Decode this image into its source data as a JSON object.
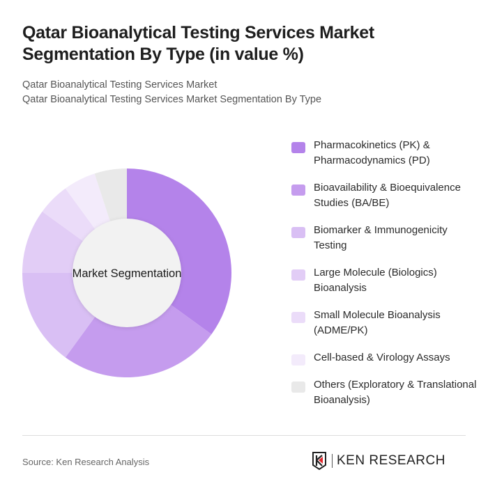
{
  "title": "Qatar Bioanalytical Testing Services Market Segmentation By Type (in value %)",
  "subtitle_1": "Qatar Bioanalytical Testing Services Market",
  "subtitle_2": "Qatar Bioanalytical Testing Services Market Segmentation By Type",
  "chart_data": {
    "type": "pie",
    "variant": "donut",
    "center_label": "Market Segmentation",
    "legend_position": "right",
    "categories": [
      "Pharmacokinetics (PK) & Pharmacodynamics (PD)",
      "Bioavailability & Bioequivalence Studies (BA/BE)",
      "Biomarker & Immunogenicity Testing",
      "Large Molecule (Biologics) Bioanalysis",
      "Small Molecule Bioanalysis (ADME/PK)",
      "Cell-based & Virology Assays",
      "Others (Exploratory & Translational Bioanalysis)"
    ],
    "values": [
      35,
      25,
      15,
      10,
      5,
      5,
      5
    ],
    "colors": [
      "#b483ea",
      "#c59cee",
      "#d9bff4",
      "#e2cdf6",
      "#ebdcf9",
      "#f3ebfb",
      "#e9e9e9"
    ]
  },
  "footer": {
    "source": "Source: Ken Research Analysis",
    "logo_text": "KEN RESEARCH"
  }
}
